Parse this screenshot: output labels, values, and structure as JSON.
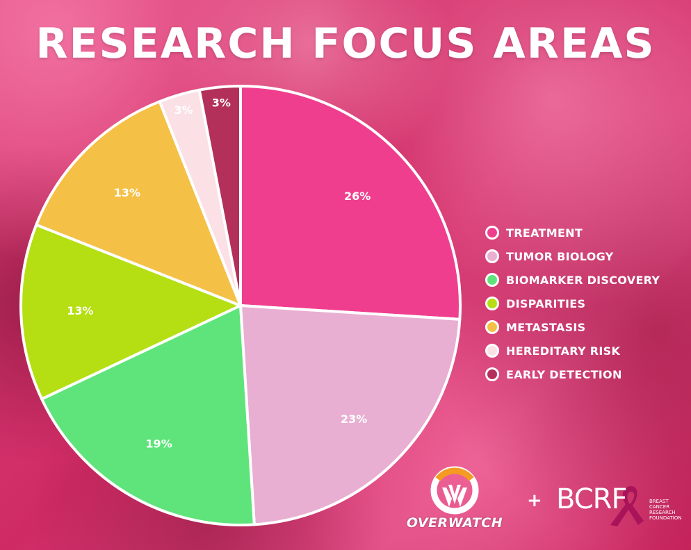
{
  "title": "RESEARCH FOCUS AREAS",
  "chart_data": {
    "type": "pie",
    "title": "RESEARCH FOCUS AREAS",
    "labels": [
      "TREATMENT",
      "TUMOR BIOLOGY",
      "BIOMARKER DISCOVERY",
      "DISPARITIES",
      "METASTASIS",
      "HEREDITARY RISK",
      "EARLY DETECTION"
    ],
    "values": [
      26,
      23,
      19,
      13,
      13,
      3,
      3
    ],
    "value_labels": [
      "26%",
      "23%",
      "19%",
      "13%",
      "13%",
      "3%",
      "3%"
    ],
    "colors": [
      "#f03e8f",
      "#e8afd2",
      "#5ee47a",
      "#b5df12",
      "#f5c046",
      "#fbe0e6",
      "#b3305b"
    ],
    "legend_position": "right"
  },
  "logos": {
    "overwatch_word": "OVERWATCH",
    "plus": "+",
    "bcrf_word": "BCRF",
    "bcrf_subtitle": [
      "BREAST",
      "CANCER",
      "RESEARCH",
      "FOUNDATION"
    ]
  }
}
